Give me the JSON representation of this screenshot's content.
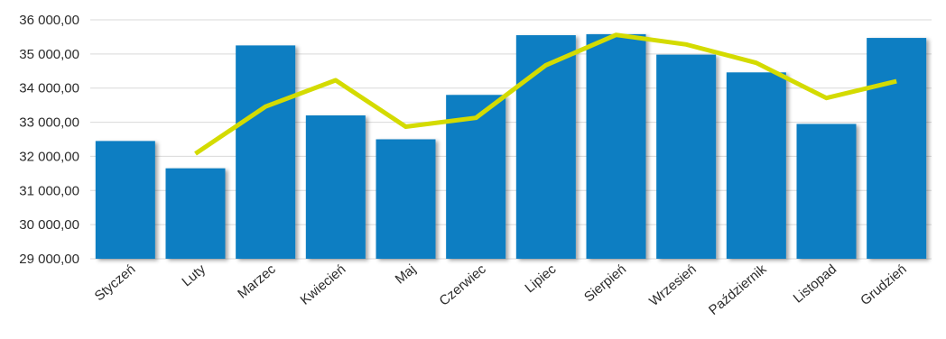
{
  "chart_data": {
    "type": "bar",
    "title": "",
    "xlabel": "",
    "ylabel": "",
    "categories": [
      "Styczeń",
      "Luty",
      "Marzec",
      "Kwiecień",
      "Maj",
      "Czerwiec",
      "Lipiec",
      "Sierpień",
      "Wrzesień",
      "Październik",
      "Listopad",
      "Grudzień"
    ],
    "y_ticks": [
      "29 000,00",
      "30 000,00",
      "31 000,00",
      "32 000,00",
      "33 000,00",
      "34 000,00",
      "35 000,00",
      "36 000,00"
    ],
    "ylim": [
      29000,
      36000
    ],
    "grid": true,
    "series": [
      {
        "type": "bar",
        "color": "#0a7ec2",
        "values": [
          32450,
          31650,
          35250,
          33200,
          32500,
          33800,
          35550,
          35580,
          34980,
          34460,
          32950,
          35470
        ]
      },
      {
        "type": "line",
        "color": "#d4db00",
        "values": [
          null,
          32080,
          33460,
          34230,
          32870,
          33130,
          34670,
          35560,
          35280,
          34740,
          33710,
          34200
        ]
      }
    ]
  }
}
